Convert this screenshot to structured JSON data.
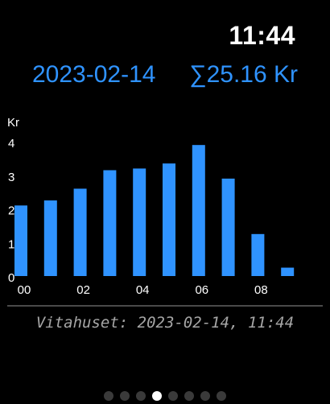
{
  "status": {
    "time": "11:44"
  },
  "header": {
    "date": "2023-02-14",
    "total": "∑25.16 Kr"
  },
  "chart_data": {
    "type": "bar",
    "ylabel": "Kr",
    "ylim": [
      0,
      4
    ],
    "yticks": [
      0,
      1,
      2,
      3,
      4
    ],
    "x": [
      0,
      1,
      2,
      3,
      4,
      5,
      6,
      7,
      8,
      9
    ],
    "xtick_labels": [
      {
        "x": 0,
        "label": "00"
      },
      {
        "x": 2,
        "label": "02"
      },
      {
        "x": 4,
        "label": "04"
      },
      {
        "x": 6,
        "label": "06"
      },
      {
        "x": 8,
        "label": "08"
      }
    ],
    "values": [
      2.1,
      2.25,
      2.6,
      3.15,
      3.2,
      3.35,
      3.9,
      2.9,
      1.25,
      0.25
    ],
    "bar_color": "#2f93ff"
  },
  "footer": {
    "text": "Vitahuset: 2023-02-14, 11:44"
  },
  "pager": {
    "count": 8,
    "active": 3
  }
}
